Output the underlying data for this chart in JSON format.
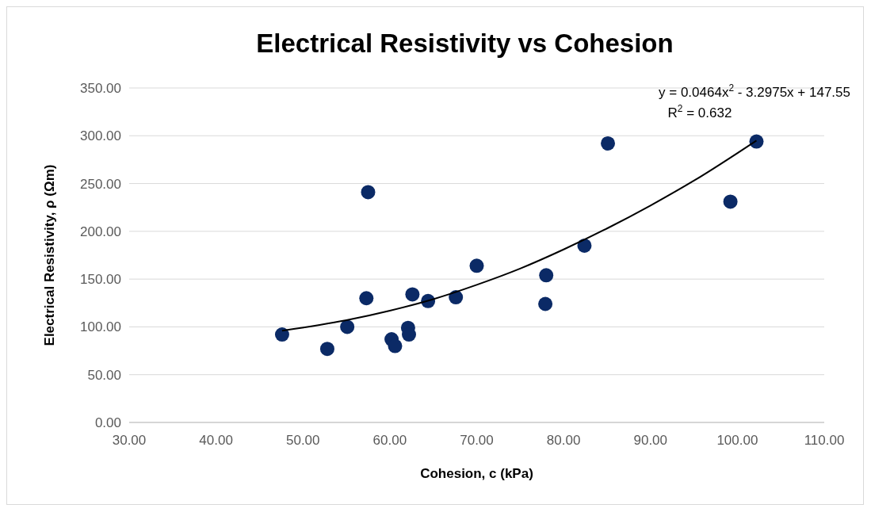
{
  "chart_data": {
    "type": "scatter",
    "title": "Electrical Resistivity vs Cohesion",
    "xlabel": "Cohesion, c (kPa)",
    "ylabel": "Electrical Resistivity, ρ (Ωm)",
    "xlim": [
      30,
      110
    ],
    "xticks": [
      {
        "value": 30,
        "label": "30.00"
      },
      {
        "value": 40,
        "label": "40.00"
      },
      {
        "value": 50,
        "label": "50.00"
      },
      {
        "value": 60,
        "label": "60.00"
      },
      {
        "value": 70,
        "label": "70.00"
      },
      {
        "value": 80,
        "label": "80.00"
      },
      {
        "value": 90,
        "label": "90.00"
      },
      {
        "value": 100,
        "label": "100.00"
      },
      {
        "value": 110,
        "label": "110.00"
      }
    ],
    "ylim": [
      0,
      350
    ],
    "yticks": [
      {
        "value": 0,
        "label": "0.00"
      },
      {
        "value": 50,
        "label": "50.00"
      },
      {
        "value": 100,
        "label": "100.00"
      },
      {
        "value": 150,
        "label": "150.00"
      },
      {
        "value": 200,
        "label": "200.00"
      },
      {
        "value": 250,
        "label": "250.00"
      },
      {
        "value": 300,
        "label": "300.00"
      },
      {
        "value": 350,
        "label": "350.00"
      }
    ],
    "grid": "y",
    "marker": "circle",
    "series": [
      {
        "color": "#0b2a66",
        "x": [
          47.6,
          52.8,
          55.1,
          57.3,
          57.5,
          60.2,
          60.6,
          62.1,
          62.2,
          62.6,
          64.4,
          67.6,
          70.0,
          77.9,
          78.0,
          82.4,
          85.1,
          99.2,
          102.2
        ],
        "values": [
          92,
          77,
          100,
          130,
          241,
          87,
          80,
          99,
          92,
          134,
          127,
          131,
          164,
          124,
          154,
          185,
          292,
          231,
          294
        ]
      },
      {
        "type": "line",
        "marker": "none",
        "color": "#000000",
        "x": [
          47.6,
          55,
          60,
          65,
          70,
          75,
          80,
          85,
          90,
          95,
          102.2
        ],
        "values": [
          96,
          107,
          117,
          129,
          144,
          161,
          181,
          203,
          227,
          253,
          295
        ]
      }
    ],
    "annotations": [
      "y = 0.0464x$^{2}$ - 3.2975x + 147.55",
      "R$^{2}$ = 0.632"
    ]
  }
}
